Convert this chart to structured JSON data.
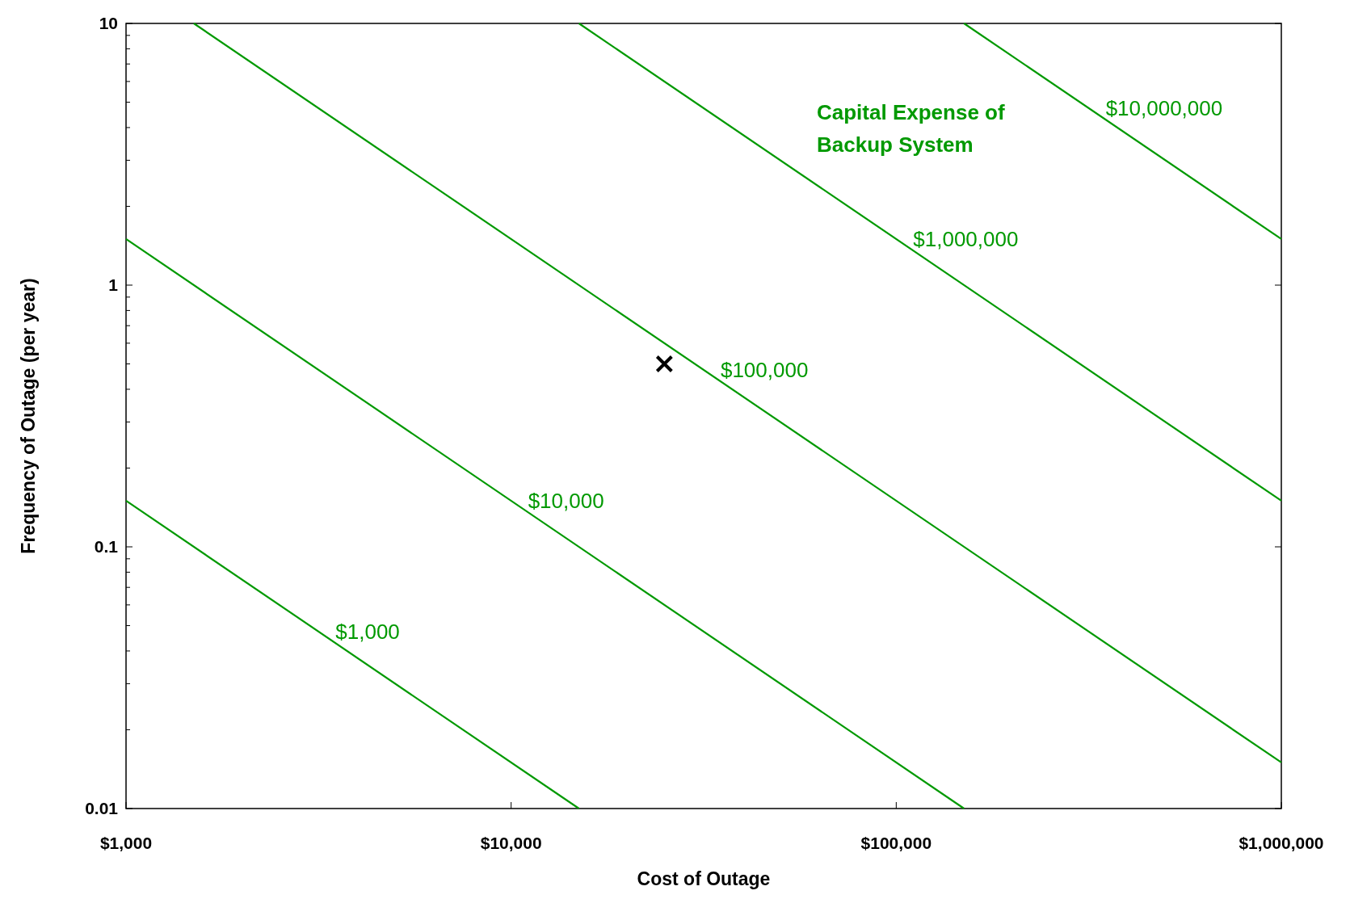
{
  "chart_data": {
    "type": "line",
    "xlabel": "Cost of Outage",
    "ylabel": "Frequency of Outage (per year)",
    "log": "xy",
    "grid": false,
    "xlim": [
      1000,
      1000000
    ],
    "xticks": [
      {
        "value": 1000,
        "label": "$1,000"
      },
      {
        "value": 10000,
        "label": "$10,000"
      },
      {
        "value": 100000,
        "label": "$100,000"
      },
      {
        "value": 1000000,
        "label": "$1,000,000"
      }
    ],
    "ylim": [
      0.01,
      10
    ],
    "yticks": [
      0.01,
      {
        "value": 0.02,
        "label": null
      },
      {
        "value": 0.03,
        "label": null
      },
      {
        "value": 0.04,
        "label": null
      },
      {
        "value": 0.05,
        "label": null
      },
      {
        "value": 0.06,
        "label": null
      },
      {
        "value": 0.07,
        "label": null
      },
      {
        "value": 0.08,
        "label": null
      },
      {
        "value": 0.09,
        "label": null
      },
      0.1,
      {
        "value": 0.2,
        "label": null
      },
      {
        "value": 0.3,
        "label": null
      },
      {
        "value": 0.4,
        "label": null
      },
      {
        "value": 0.5,
        "label": null
      },
      {
        "value": 0.6,
        "label": null
      },
      {
        "value": 0.7,
        "label": null
      },
      {
        "value": 0.8,
        "label": null
      },
      {
        "value": 0.9,
        "label": null
      },
      1,
      {
        "value": 2,
        "label": null
      },
      {
        "value": 3,
        "label": null
      },
      {
        "value": 4,
        "label": null
      },
      {
        "value": 5,
        "label": null
      },
      {
        "value": 6,
        "label": null
      },
      {
        "value": 7,
        "label": null
      },
      {
        "value": 8,
        "label": null
      },
      {
        "value": 9,
        "label": null
      },
      10
    ],
    "series": [
      {
        "name": "$1,000",
        "color": "#009900",
        "x": [
          1000,
          15000
        ],
        "values": [
          0.15,
          0.01
        ]
      },
      {
        "name": "$10,000",
        "color": "#009900",
        "x": [
          1000,
          150000
        ],
        "values": [
          1.5,
          0.01
        ]
      },
      {
        "name": "$100,000",
        "color": "#009900",
        "x": [
          1500,
          1000000
        ],
        "values": [
          10,
          0.015
        ]
      },
      {
        "name": "$1,000,000",
        "color": "#009900",
        "x": [
          15000,
          1000000
        ],
        "values": [
          10,
          0.15
        ]
      },
      {
        "name": "$10,000,000",
        "color": "#009900",
        "x": [
          150000,
          1000000
        ],
        "values": [
          10,
          1.5
        ]
      },
      {
        "type": "scatter",
        "color": "#000000",
        "marker": "cross",
        "x": [
          25000
        ],
        "values": [
          0.5
        ]
      }
    ],
    "annotations": [
      "Capital Expense of\nBackup System"
    ]
  }
}
